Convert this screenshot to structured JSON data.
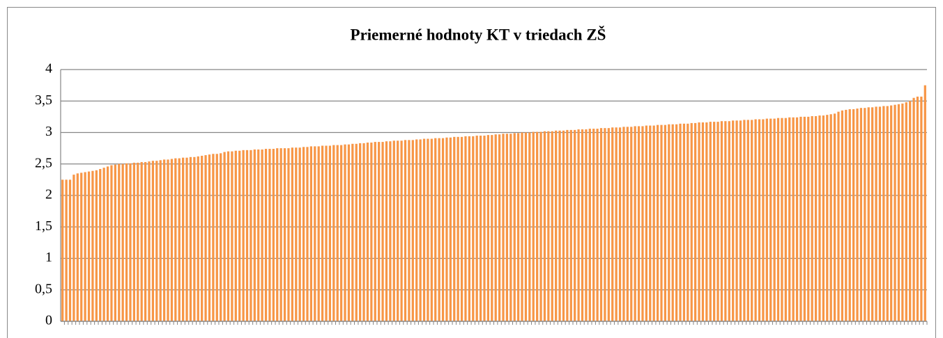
{
  "chart_data": {
    "type": "bar",
    "title": "Priemerné hodnoty KT v triedach ZŠ",
    "categories": [
      null,
      null,
      null,
      null,
      null,
      null,
      null,
      null,
      null,
      null,
      null,
      null,
      null,
      null,
      null,
      null,
      null,
      null,
      null,
      null,
      null,
      null,
      null,
      null,
      null,
      null,
      null,
      null,
      null,
      null,
      null,
      null,
      null,
      null,
      null,
      null,
      null,
      null,
      null,
      null,
      null,
      null,
      null,
      null,
      null,
      null,
      null,
      null,
      null,
      null,
      null,
      null,
      null,
      null,
      null,
      null,
      null,
      null,
      null,
      null,
      null,
      null,
      null,
      null,
      null,
      null,
      null,
      null,
      null,
      null,
      null,
      null,
      null,
      null,
      null,
      null,
      null,
      null,
      null,
      null,
      null,
      null,
      null,
      null,
      null,
      null,
      null,
      null,
      null,
      null,
      null,
      null,
      null,
      null,
      null,
      null,
      null,
      null,
      null,
      null,
      null,
      null,
      null,
      null,
      null,
      null,
      null,
      null,
      null,
      null,
      null,
      null,
      null,
      null,
      null,
      null,
      null,
      null,
      null,
      null,
      null,
      null,
      null,
      null,
      null,
      null,
      null,
      null,
      null,
      null,
      null,
      null,
      null,
      null,
      null,
      null,
      null,
      null,
      null,
      null,
      null,
      null,
      null,
      null,
      null,
      null,
      null,
      null,
      null,
      null,
      null,
      null,
      null,
      null,
      null,
      null,
      null,
      null,
      null,
      null,
      null,
      null,
      null,
      null,
      null,
      null,
      null,
      null,
      null,
      null,
      null,
      null,
      null,
      null,
      null,
      null,
      null,
      null,
      null,
      null,
      null,
      null,
      null,
      null,
      null,
      null,
      null,
      null,
      null,
      null,
      null,
      null,
      null,
      null,
      null,
      null,
      null,
      null,
      null,
      null,
      null,
      null,
      null,
      null,
      null,
      null,
      null,
      null,
      null,
      null,
      null,
      null,
      null,
      null,
      null,
      null,
      null,
      null,
      null,
      null,
      null,
      null,
      null,
      null,
      null,
      null,
      null,
      null,
      null,
      null
    ],
    "values": [
      2.25,
      2.25,
      2.25,
      2.33,
      2.35,
      2.36,
      2.37,
      2.38,
      2.39,
      2.4,
      2.42,
      2.44,
      2.46,
      2.48,
      2.49,
      2.5,
      2.5,
      2.51,
      2.51,
      2.52,
      2.52,
      2.53,
      2.53,
      2.54,
      2.55,
      2.55,
      2.56,
      2.57,
      2.57,
      2.58,
      2.59,
      2.59,
      2.6,
      2.6,
      2.61,
      2.61,
      2.62,
      2.63,
      2.64,
      2.65,
      2.66,
      2.66,
      2.67,
      2.69,
      2.7,
      2.7,
      2.71,
      2.71,
      2.72,
      2.72,
      2.72,
      2.73,
      2.73,
      2.73,
      2.74,
      2.74,
      2.74,
      2.75,
      2.75,
      2.75,
      2.75,
      2.76,
      2.76,
      2.76,
      2.77,
      2.77,
      2.78,
      2.78,
      2.78,
      2.79,
      2.79,
      2.79,
      2.8,
      2.8,
      2.8,
      2.81,
      2.81,
      2.82,
      2.82,
      2.83,
      2.83,
      2.84,
      2.84,
      2.85,
      2.85,
      2.85,
      2.86,
      2.86,
      2.87,
      2.87,
      2.87,
      2.88,
      2.88,
      2.88,
      2.89,
      2.89,
      2.9,
      2.9,
      2.9,
      2.91,
      2.91,
      2.91,
      2.92,
      2.92,
      2.93,
      2.93,
      2.93,
      2.94,
      2.94,
      2.94,
      2.95,
      2.95,
      2.95,
      2.96,
      2.96,
      2.97,
      2.97,
      2.98,
      2.98,
      2.98,
      2.99,
      2.99,
      3.0,
      3.0,
      3.0,
      3.01,
      3.01,
      3.01,
      3.02,
      3.02,
      3.02,
      3.03,
      3.03,
      3.03,
      3.04,
      3.04,
      3.04,
      3.05,
      3.05,
      3.05,
      3.06,
      3.06,
      3.06,
      3.07,
      3.07,
      3.07,
      3.08,
      3.08,
      3.08,
      3.09,
      3.09,
      3.09,
      3.1,
      3.1,
      3.1,
      3.11,
      3.11,
      3.11,
      3.12,
      3.12,
      3.12,
      3.13,
      3.13,
      3.13,
      3.14,
      3.14,
      3.14,
      3.15,
      3.15,
      3.16,
      3.16,
      3.16,
      3.17,
      3.17,
      3.17,
      3.18,
      3.18,
      3.18,
      3.19,
      3.19,
      3.19,
      3.2,
      3.2,
      3.2,
      3.21,
      3.21,
      3.21,
      3.22,
      3.22,
      3.22,
      3.23,
      3.23,
      3.23,
      3.24,
      3.24,
      3.24,
      3.25,
      3.25,
      3.25,
      3.26,
      3.26,
      3.27,
      3.27,
      3.28,
      3.29,
      3.3,
      3.33,
      3.35,
      3.36,
      3.37,
      3.37,
      3.38,
      3.39,
      3.39,
      3.4,
      3.4,
      3.41,
      3.41,
      3.42,
      3.42,
      3.43,
      3.44,
      3.45,
      3.46,
      3.48,
      3.5,
      3.55,
      3.57,
      3.57,
      3.75
    ],
    "color": "#f79646",
    "ylim": [
      0,
      4
    ],
    "yticks": [
      0,
      {
        "value": 0.5,
        "label": "0,5"
      },
      1,
      {
        "value": 1.5,
        "label": "1,5"
      },
      2,
      {
        "value": 2.5,
        "label": "2,5"
      },
      3,
      {
        "value": 3.5,
        "label": "3,5"
      },
      4
    ],
    "grid": true
  }
}
